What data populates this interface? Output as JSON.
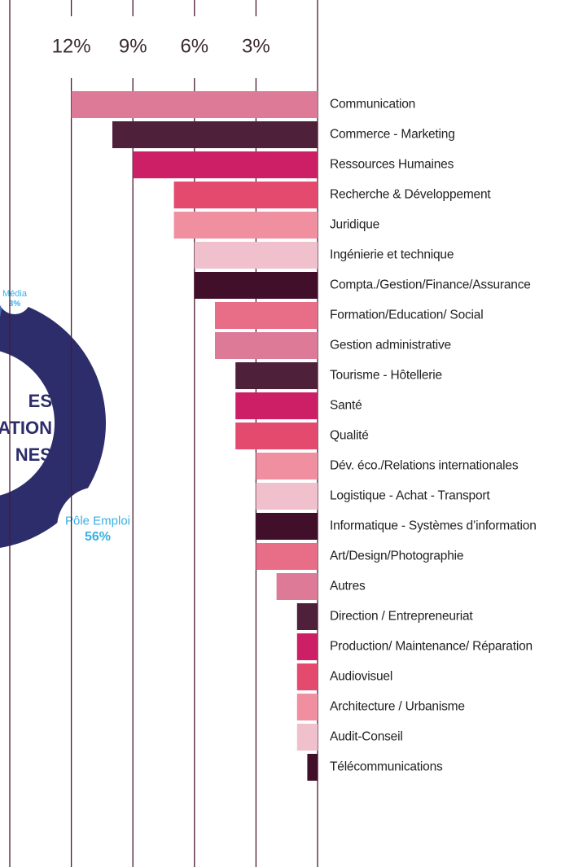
{
  "chart_data": [
    {
      "type": "bar",
      "categories": [
        "Communication",
        "Commerce - Marketing",
        "Ressources Humaines",
        "Recherche & Développement",
        "Juridique",
        "Ingénierie et technique",
        "Compta./Gestion/Finance/Assurance",
        "Formation/Education/ Social",
        "Gestion administrative",
        "Tourisme - Hôtellerie",
        "Santé",
        "Qualité",
        "Dév. éco./Relations internationales",
        "Logistique - Achat - Transport",
        "Informatique - Systèmes d’information",
        "Art/Design/Photographie",
        "Autres",
        "Direction / Entrepreneuriat",
        "Production/ Maintenance/ Réparation",
        "Audiovisuel",
        "Architecture / Urbanisme",
        "Audit-Conseil",
        "Télécommunications"
      ],
      "values": [
        12,
        10,
        9,
        7,
        7,
        6,
        6,
        5,
        5,
        4,
        4,
        4,
        3,
        3,
        3,
        3,
        2,
        1,
        1,
        1,
        1,
        1,
        0.5
      ],
      "colors": [
        "#dd7a97",
        "#4f2039",
        "#cc1f66",
        "#e44a6e",
        "#ef8fa0",
        "#f0c0cd",
        "#420f2b",
        "#e86e88",
        "#dd7a97",
        "#4f2039",
        "#cc1f66",
        "#e44a6e",
        "#ef8fa0",
        "#f0c0cd",
        "#420f2b",
        "#e86e88",
        "#dd7a97",
        "#4f2039",
        "#cc1f66",
        "#e44a6e",
        "#ef8fa0",
        "#f0c0cd",
        "#420f2b"
      ],
      "xlim": [
        0,
        15
      ],
      "xticks": [
        {
          "value": 3,
          "label": "3%"
        },
        {
          "value": 6,
          "label": "6%"
        },
        {
          "value": 9,
          "label": "9%"
        },
        {
          "value": 12,
          "label": "12%"
        }
      ],
      "grid": true
    },
    {
      "type": "pie",
      "labels": [
        "Média",
        "Pôle Emploi"
      ],
      "values": [
        3,
        56
      ],
      "value_labels": [
        "3%",
        "56%"
      ],
      "colors": [
        "#3c68b1",
        "#2e2d6b"
      ],
      "center_text": [
        "ES",
        "ATION",
        "NES"
      ]
    }
  ]
}
